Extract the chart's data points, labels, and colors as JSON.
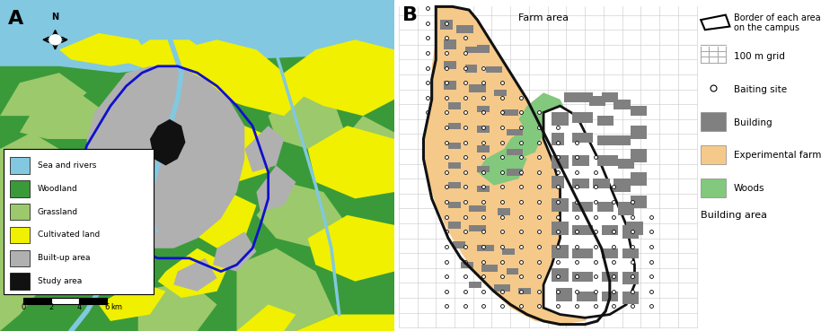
{
  "fig_width": 9.0,
  "fig_height": 3.69,
  "dpi": 100,
  "bg_color": "#ffffff",
  "panel_A": {
    "label": "A",
    "color_sea": "#82C8E0",
    "color_woodland": "#3A9A3A",
    "color_grassland": "#9CC96B",
    "color_cultivated": "#F0F000",
    "color_builtup": "#B0B0B0",
    "color_study": "#111111",
    "color_river": "#82C8E0",
    "urban_border_color": "#1010CC",
    "legend_items": [
      [
        "Study area",
        "#111111"
      ],
      [
        "Built-up area",
        "#B0B0B0"
      ],
      [
        "Cultivated land",
        "#F0F000"
      ],
      [
        "Grassland",
        "#9CC96B"
      ],
      [
        "Woodland",
        "#3A9A3A"
      ],
      [
        "Sea and rivers",
        "#82C8E0"
      ]
    ]
  },
  "panel_B": {
    "label": "B",
    "bg_color": "#ffffff",
    "grid_color": "#C8C8C8",
    "farm_color": "#F5C98A",
    "woods_color": "#82C87D",
    "building_color": "#808080",
    "border_color": "#111111",
    "farm_area_label": "Farm area",
    "building_area_label": "Building area",
    "legend_items": [
      [
        "Border of each area\non the campus",
        "border"
      ],
      [
        "100 m grid",
        "grid"
      ],
      [
        "Baiting site",
        "circle"
      ],
      [
        "Building",
        "#808080"
      ],
      [
        "Experimental farm",
        "#F5C98A"
      ],
      [
        "Woods",
        "#82C87D"
      ]
    ]
  }
}
